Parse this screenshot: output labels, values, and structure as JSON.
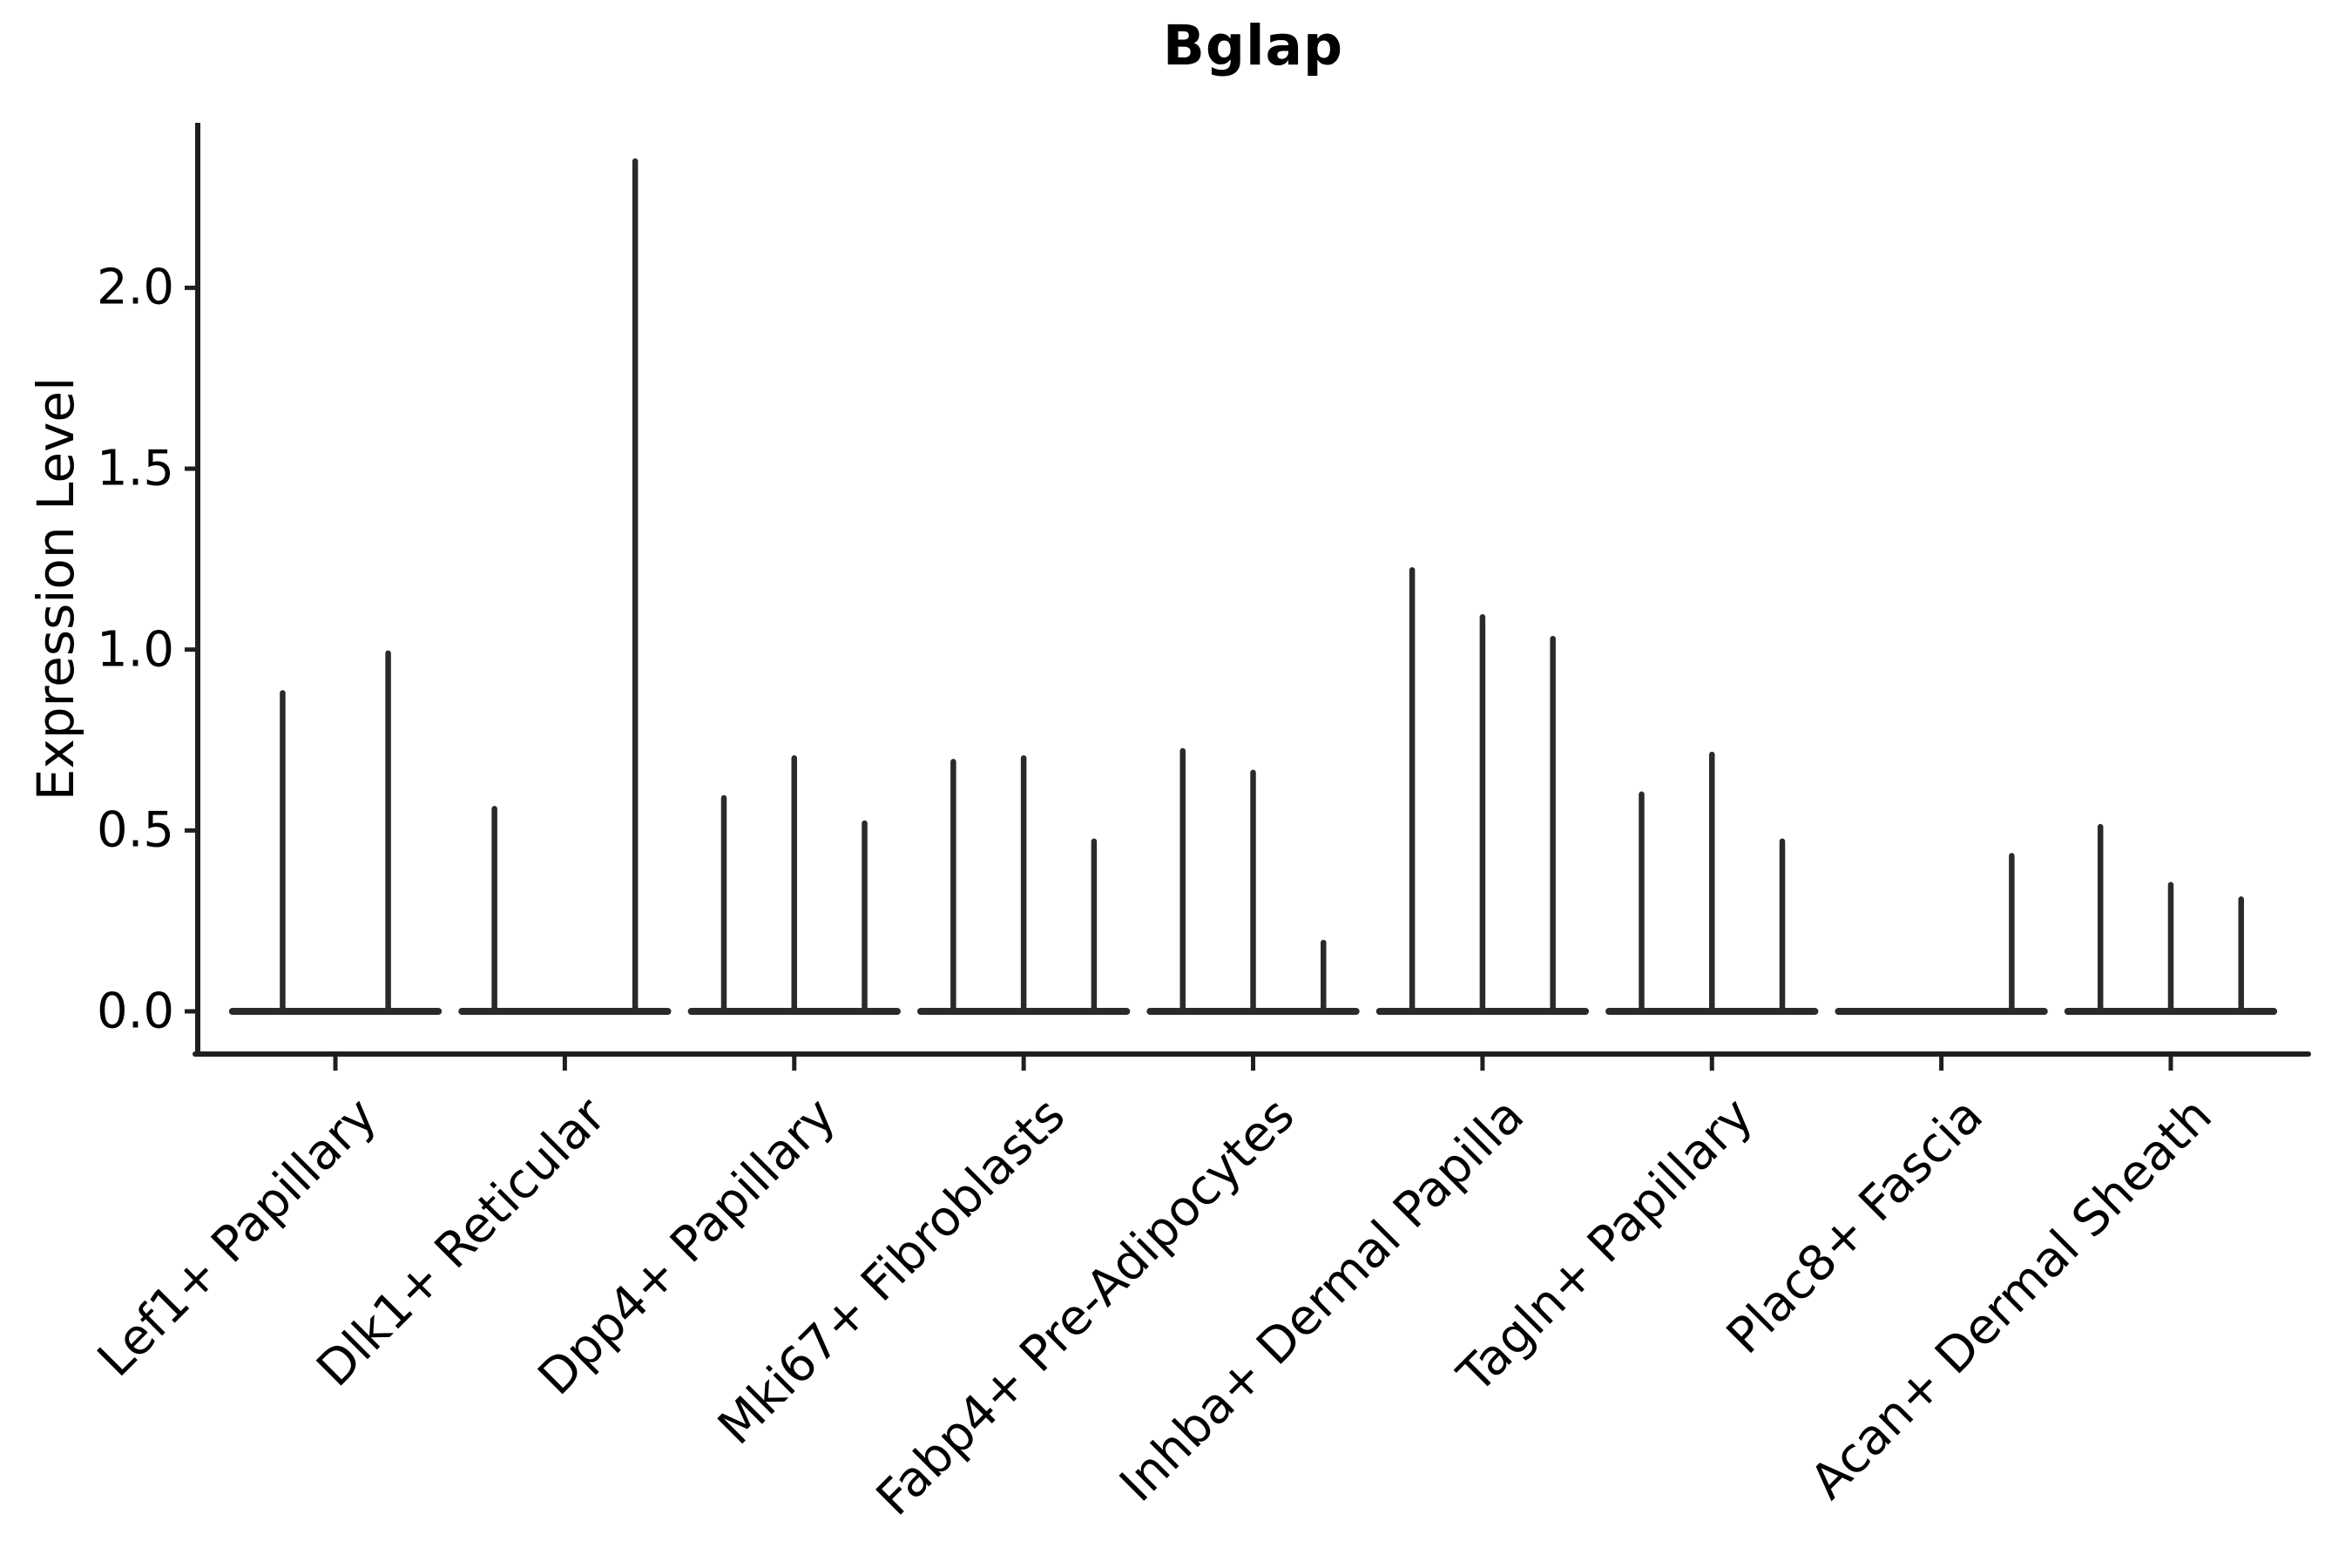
{
  "title": "Bglap",
  "chart_data": {
    "type": "violin",
    "title": "Bglap",
    "xlabel": "",
    "ylabel": "Expression Level",
    "categories": [
      "Lef1+ Papillary",
      "Dlk1+ Reticular",
      "Dpp4+ Papillary",
      "Mki67+ Fibroblasts",
      "Fabp4+ Pre-Adipocytes",
      "Inhba+ Dermal Papilla",
      "Tagln+ Papillary",
      "Plac8+ Fascia",
      "Acan+ Dermal Sheath"
    ],
    "groups": [
      {
        "category": "Lef1+ Papillary",
        "violin_peaks": [
          0.88,
          0.99
        ]
      },
      {
        "category": "Dlk1+ Reticular",
        "violin_peaks": [
          0.56,
          0.0,
          2.35
        ]
      },
      {
        "category": "Dpp4+ Papillary",
        "violin_peaks": [
          0.59,
          0.7,
          0.52
        ]
      },
      {
        "category": "Mki67+ Fibroblasts",
        "violin_peaks": [
          0.69,
          0.7,
          0.47
        ]
      },
      {
        "category": "Fabp4+ Pre-Adipocytes",
        "violin_peaks": [
          0.72,
          0.66,
          0.19
        ]
      },
      {
        "category": "Inhba+ Dermal Papilla",
        "violin_peaks": [
          1.22,
          1.09,
          1.03
        ]
      },
      {
        "category": "Tagln+ Papillary",
        "violin_peaks": [
          0.6,
          0.71,
          0.47
        ]
      },
      {
        "category": "Plac8+ Fascia",
        "violin_peaks": [
          0.0,
          0.0,
          0.43
        ]
      },
      {
        "category": "Acan+ Dermal Sheath",
        "violin_peaks": [
          0.51,
          0.35,
          0.31
        ]
      }
    ],
    "yticks": [
      0.0,
      0.5,
      1.0,
      1.5,
      2.0
    ],
    "ytick_labels": [
      "0.0",
      "0.5",
      "1.0",
      "1.5",
      "2.0"
    ],
    "ylim": [
      -0.118,
      2.456
    ],
    "x_tick_rotation_deg": 45,
    "grid": false,
    "legend": "none",
    "line_color": "#1f1f1f",
    "violin_color": "#2a2a2a",
    "text_color": "#000000",
    "background": "#ffffff"
  }
}
